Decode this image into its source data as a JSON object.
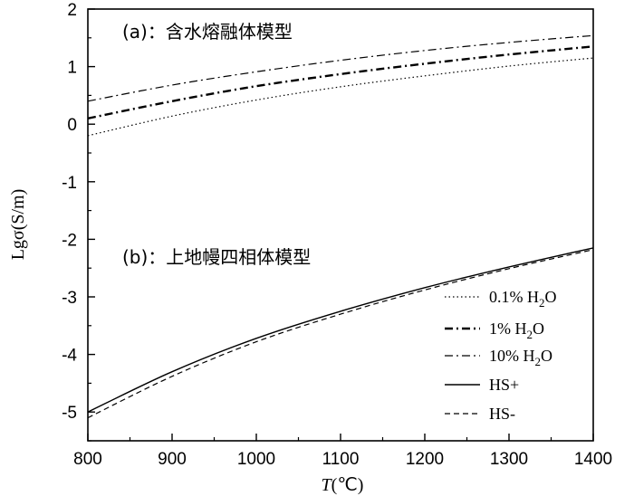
{
  "chart_data": {
    "type": "line",
    "xlabel_italic": "T",
    "xlabel_rest": "(℃)",
    "ylabel": "Lgσ(S/m)",
    "xlim": [
      800,
      1400
    ],
    "ylim": [
      -5.5,
      2
    ],
    "x_ticks": [
      "800",
      "900",
      "1000",
      "1100",
      "1200",
      "1300",
      "1400"
    ],
    "y_ticks": [
      "-5",
      "-4",
      "-3",
      "-2",
      "-1",
      "0",
      "1",
      "2"
    ],
    "annotations": {
      "a": "(a)：含水熔融体模型",
      "b": "(b)：上地幔四相体模型"
    },
    "series": [
      {
        "name": "0.1% H2O",
        "label_main": "0.1% H",
        "label_sub": "2",
        "label_tail": "O",
        "style": "dotted",
        "x": [
          800,
          900,
          1000,
          1100,
          1200,
          1300,
          1400
        ],
        "y": [
          -0.2,
          0.14,
          0.42,
          0.65,
          0.84,
          1.01,
          1.15
        ]
      },
      {
        "name": "1% H2O",
        "label_main": "1% H",
        "label_sub": "2",
        "label_tail": "O",
        "style": "dashdot-bold",
        "x": [
          800,
          900,
          1000,
          1100,
          1200,
          1300,
          1400
        ],
        "y": [
          0.1,
          0.4,
          0.66,
          0.87,
          1.05,
          1.21,
          1.35
        ]
      },
      {
        "name": "10% H2O",
        "label_main": "10% H",
        "label_sub": "2",
        "label_tail": "O",
        "style": "dashdot-thin",
        "x": [
          800,
          900,
          1000,
          1100,
          1200,
          1300,
          1400
        ],
        "y": [
          0.4,
          0.68,
          0.91,
          1.11,
          1.28,
          1.42,
          1.54
        ]
      },
      {
        "name": "HS+",
        "label_main": "HS+",
        "label_sub": "",
        "label_tail": "",
        "style": "solid",
        "x": [
          800,
          900,
          1000,
          1100,
          1200,
          1300,
          1400
        ],
        "y": [
          -5.0,
          -4.3,
          -3.72,
          -3.25,
          -2.84,
          -2.48,
          -2.15
        ]
      },
      {
        "name": "HS-",
        "label_main": "HS-",
        "label_sub": "",
        "label_tail": "",
        "style": "dashed",
        "x": [
          800,
          900,
          1000,
          1100,
          1200,
          1300,
          1400
        ],
        "y": [
          -5.1,
          -4.38,
          -3.78,
          -3.3,
          -2.88,
          -2.51,
          -2.18
        ]
      }
    ],
    "legend_position": "lower-right",
    "grid": false
  }
}
